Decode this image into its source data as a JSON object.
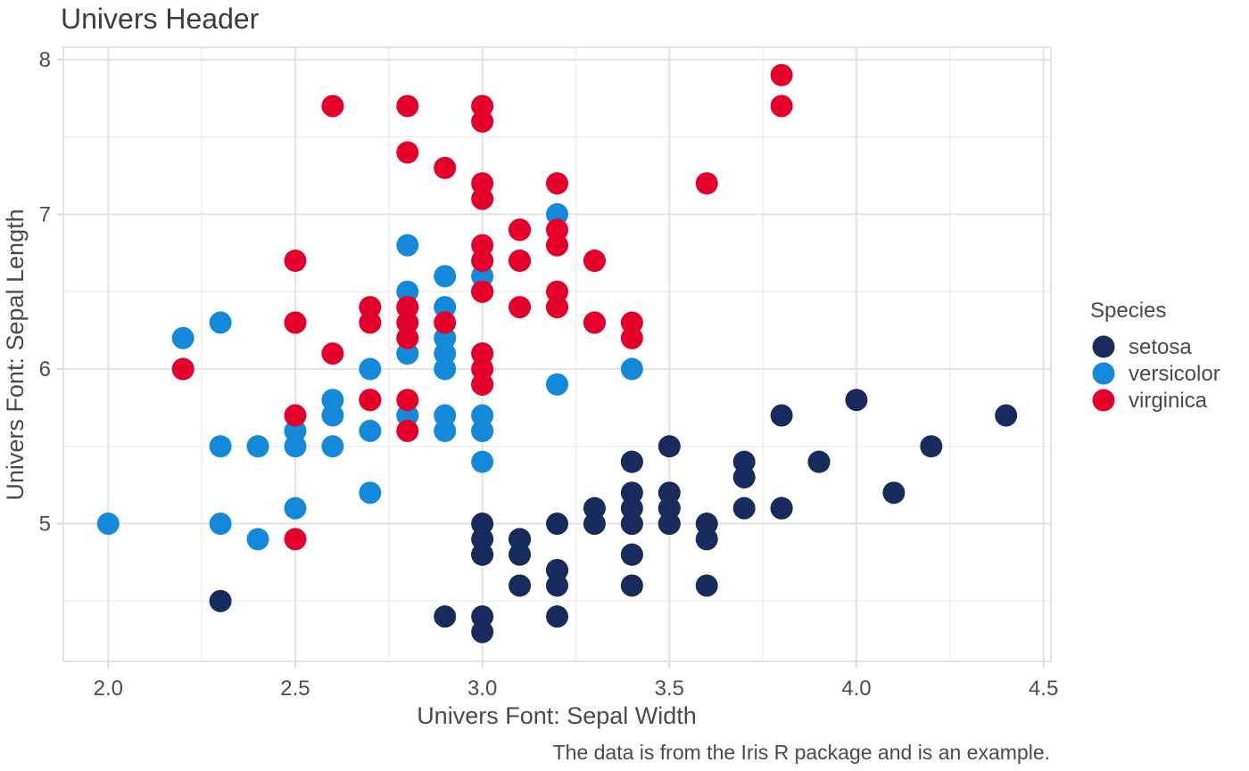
{
  "chart_data": {
    "type": "scatter",
    "title": "Univers Header",
    "xlabel": "Univers Font: Sepal Width",
    "ylabel": "Univers Font: Sepal Length",
    "caption": "The data is from the Iris R package and is an example.",
    "xlim": [
      1.88,
      4.52
    ],
    "ylim": [
      4.11,
      8.08
    ],
    "x_ticks": [
      2.0,
      2.5,
      3.0,
      3.5,
      4.0,
      4.5
    ],
    "x_tick_labels": [
      "2.0",
      "2.5",
      "3.0",
      "3.5",
      "4.0",
      "4.5"
    ],
    "y_ticks": [
      5,
      6,
      7,
      8
    ],
    "y_tick_labels": [
      "5",
      "6",
      "7",
      "8"
    ],
    "grid": true,
    "legend": {
      "title": "Species",
      "position": "right"
    },
    "series": [
      {
        "name": "setosa",
        "color": "#172b5c",
        "points": [
          [
            3.5,
            5.1
          ],
          [
            3.0,
            4.9
          ],
          [
            3.2,
            4.7
          ],
          [
            3.1,
            4.6
          ],
          [
            3.6,
            5.0
          ],
          [
            3.9,
            5.4
          ],
          [
            3.4,
            4.6
          ],
          [
            3.4,
            5.0
          ],
          [
            2.9,
            4.4
          ],
          [
            3.1,
            4.9
          ],
          [
            3.7,
            5.4
          ],
          [
            3.4,
            4.8
          ],
          [
            3.0,
            4.8
          ],
          [
            3.0,
            4.3
          ],
          [
            4.0,
            5.8
          ],
          [
            4.4,
            5.7
          ],
          [
            3.9,
            5.4
          ],
          [
            3.5,
            5.1
          ],
          [
            3.8,
            5.7
          ],
          [
            3.8,
            5.1
          ],
          [
            3.4,
            5.4
          ],
          [
            3.7,
            5.1
          ],
          [
            3.6,
            4.6
          ],
          [
            3.3,
            5.1
          ],
          [
            3.4,
            4.8
          ],
          [
            3.0,
            5.0
          ],
          [
            3.4,
            5.0
          ],
          [
            3.5,
            5.2
          ],
          [
            3.4,
            5.2
          ],
          [
            3.2,
            4.7
          ],
          [
            3.1,
            4.8
          ],
          [
            3.4,
            5.4
          ],
          [
            4.1,
            5.2
          ],
          [
            4.2,
            5.5
          ],
          [
            3.1,
            4.9
          ],
          [
            3.2,
            5.0
          ],
          [
            3.5,
            5.5
          ],
          [
            3.6,
            4.9
          ],
          [
            3.0,
            4.4
          ],
          [
            3.4,
            5.1
          ],
          [
            3.5,
            5.0
          ],
          [
            2.3,
            4.5
          ],
          [
            3.2,
            4.4
          ],
          [
            3.5,
            5.0
          ],
          [
            3.8,
            5.1
          ],
          [
            3.0,
            4.8
          ],
          [
            3.8,
            5.1
          ],
          [
            3.2,
            4.6
          ],
          [
            3.7,
            5.3
          ],
          [
            3.3,
            5.0
          ]
        ]
      },
      {
        "name": "versicolor",
        "color": "#1589d9",
        "points": [
          [
            3.2,
            7.0
          ],
          [
            3.2,
            6.4
          ],
          [
            3.1,
            6.9
          ],
          [
            2.3,
            5.5
          ],
          [
            2.8,
            6.5
          ],
          [
            2.8,
            5.7
          ],
          [
            3.3,
            6.3
          ],
          [
            2.4,
            4.9
          ],
          [
            2.9,
            6.6
          ],
          [
            2.7,
            5.2
          ],
          [
            2.0,
            5.0
          ],
          [
            3.0,
            5.9
          ],
          [
            2.2,
            6.0
          ],
          [
            2.9,
            6.1
          ],
          [
            2.9,
            5.6
          ],
          [
            3.1,
            6.7
          ],
          [
            3.0,
            5.6
          ],
          [
            2.7,
            5.8
          ],
          [
            2.2,
            6.2
          ],
          [
            2.5,
            5.6
          ],
          [
            3.2,
            5.9
          ],
          [
            2.8,
            6.1
          ],
          [
            2.5,
            6.3
          ],
          [
            2.8,
            6.1
          ],
          [
            2.9,
            6.4
          ],
          [
            3.0,
            6.6
          ],
          [
            2.8,
            6.8
          ],
          [
            3.0,
            6.7
          ],
          [
            2.9,
            6.0
          ],
          [
            2.6,
            5.7
          ],
          [
            2.4,
            5.5
          ],
          [
            2.4,
            5.5
          ],
          [
            2.7,
            5.8
          ],
          [
            2.7,
            6.0
          ],
          [
            3.0,
            5.4
          ],
          [
            3.4,
            6.0
          ],
          [
            3.1,
            6.7
          ],
          [
            2.3,
            6.3
          ],
          [
            3.0,
            5.6
          ],
          [
            2.5,
            5.5
          ],
          [
            2.6,
            5.5
          ],
          [
            3.0,
            6.1
          ],
          [
            2.6,
            5.8
          ],
          [
            2.3,
            5.0
          ],
          [
            2.7,
            5.6
          ],
          [
            3.0,
            5.7
          ],
          [
            2.9,
            5.7
          ],
          [
            2.9,
            6.2
          ],
          [
            2.5,
            5.1
          ],
          [
            2.8,
            5.7
          ]
        ]
      },
      {
        "name": "virginica",
        "color": "#e4002b",
        "points": [
          [
            3.3,
            6.3
          ],
          [
            2.7,
            5.8
          ],
          [
            3.0,
            7.1
          ],
          [
            2.9,
            6.3
          ],
          [
            3.0,
            6.5
          ],
          [
            3.0,
            7.6
          ],
          [
            2.5,
            4.9
          ],
          [
            2.9,
            7.3
          ],
          [
            2.5,
            6.7
          ],
          [
            3.6,
            7.2
          ],
          [
            3.2,
            6.5
          ],
          [
            2.7,
            6.4
          ],
          [
            3.0,
            6.8
          ],
          [
            2.5,
            5.7
          ],
          [
            2.8,
            5.8
          ],
          [
            3.2,
            6.4
          ],
          [
            3.0,
            6.5
          ],
          [
            3.8,
            7.7
          ],
          [
            2.6,
            7.7
          ],
          [
            2.2,
            6.0
          ],
          [
            3.2,
            6.9
          ],
          [
            2.8,
            5.6
          ],
          [
            2.8,
            7.7
          ],
          [
            2.7,
            6.3
          ],
          [
            3.3,
            6.7
          ],
          [
            3.2,
            7.2
          ],
          [
            2.8,
            6.2
          ],
          [
            3.0,
            6.1
          ],
          [
            2.8,
            6.4
          ],
          [
            3.0,
            7.2
          ],
          [
            2.8,
            7.4
          ],
          [
            3.8,
            7.9
          ],
          [
            2.8,
            6.4
          ],
          [
            2.8,
            6.3
          ],
          [
            2.6,
            6.1
          ],
          [
            3.0,
            7.7
          ],
          [
            3.4,
            6.3
          ],
          [
            3.1,
            6.4
          ],
          [
            3.0,
            6.0
          ],
          [
            3.1,
            6.9
          ],
          [
            3.1,
            6.7
          ],
          [
            3.1,
            6.9
          ],
          [
            2.7,
            5.8
          ],
          [
            3.2,
            6.8
          ],
          [
            3.3,
            6.7
          ],
          [
            3.0,
            6.7
          ],
          [
            2.5,
            6.3
          ],
          [
            3.0,
            6.5
          ],
          [
            3.4,
            6.2
          ],
          [
            3.0,
            5.9
          ]
        ]
      }
    ]
  }
}
